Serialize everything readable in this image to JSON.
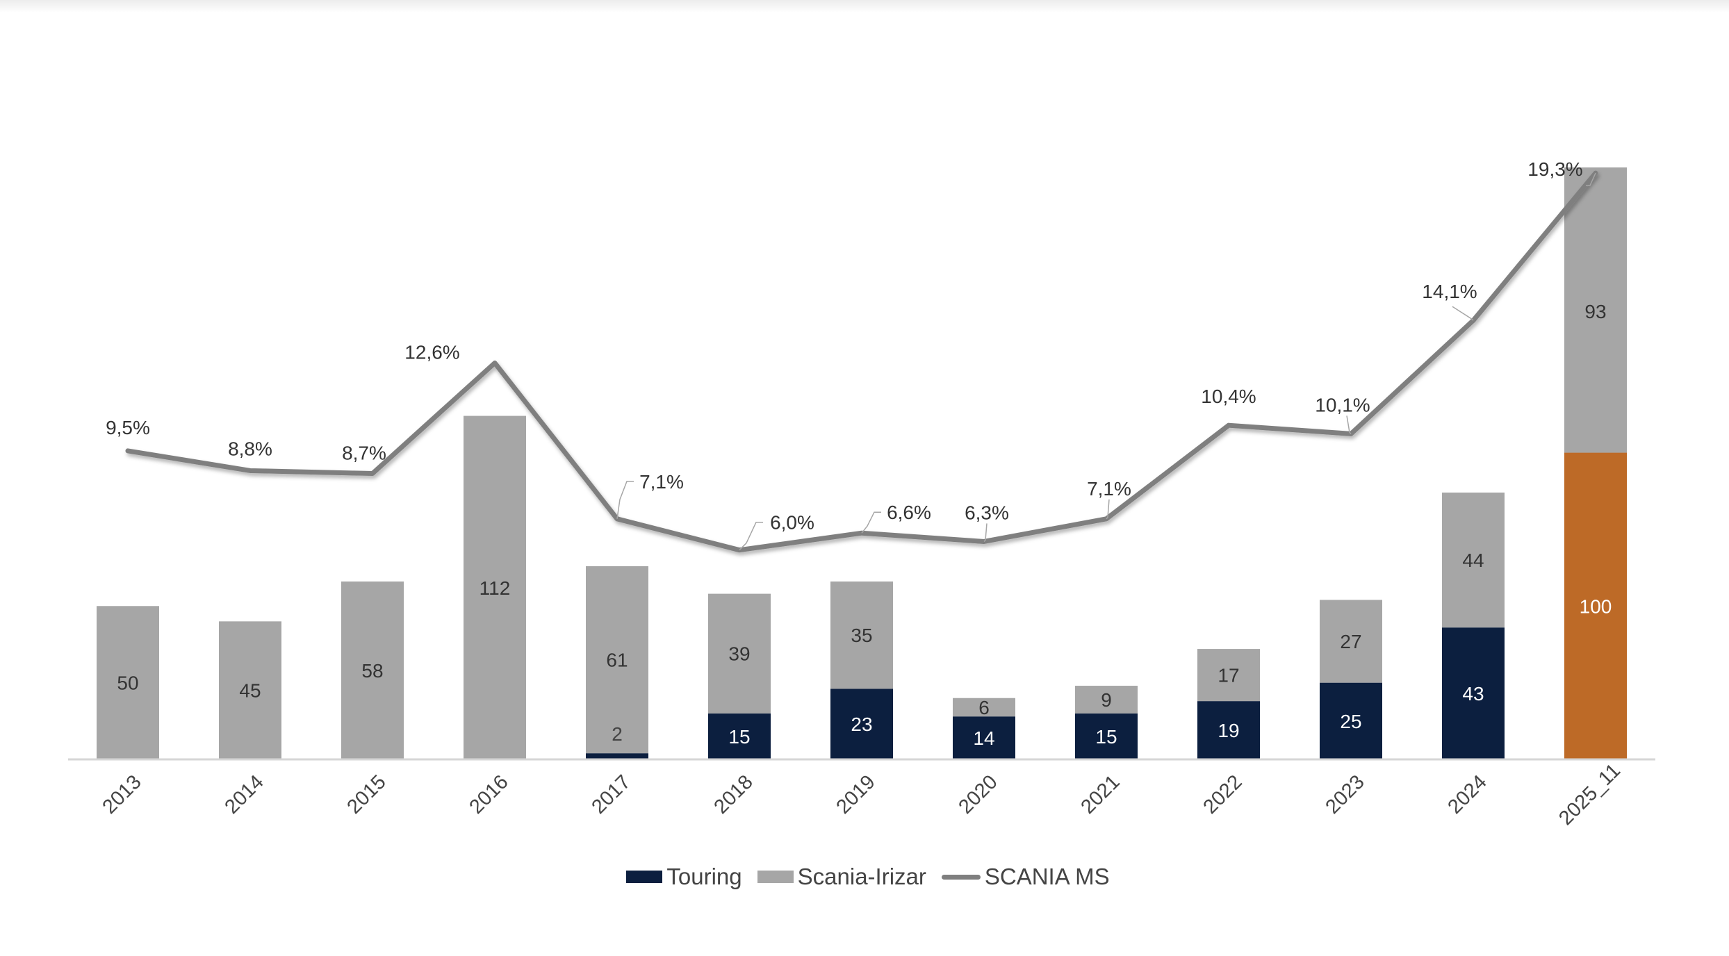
{
  "chart_data": {
    "type": "bar",
    "stacked": true,
    "title": "",
    "xlabel": "",
    "ylabel": "",
    "categories": [
      "2013",
      "2014",
      "2015",
      "2016",
      "2017",
      "2018",
      "2019",
      "2020",
      "2021",
      "2022",
      "2023",
      "2024",
      "2025_11"
    ],
    "series": [
      {
        "name": "Touring",
        "type": "bar",
        "color": "#0c1f3f",
        "label_color": "#ffffff",
        "values": [
          null,
          null,
          null,
          null,
          2,
          15,
          23,
          14,
          15,
          19,
          25,
          43,
          100
        ],
        "labels": [
          "",
          "",
          "",
          "",
          "",
          "15",
          "23",
          "14",
          "15",
          "19",
          "25",
          "43",
          "100"
        ]
      },
      {
        "name": "Scania-Irizar",
        "type": "bar",
        "color": "#a6a6a6",
        "label_color": "#333333",
        "values": [
          50,
          45,
          58,
          112,
          61,
          39,
          35,
          6,
          9,
          17,
          27,
          44,
          93
        ],
        "labels": [
          "50",
          "45",
          "58",
          "112",
          "61",
          "39",
          "35",
          "6",
          "9",
          "17",
          "27",
          "44",
          "93"
        ]
      },
      {
        "name": "SCANIA MS",
        "type": "line",
        "color": "#7f7f7f",
        "axis": "secondary",
        "values": [
          9.5,
          8.8,
          8.7,
          12.6,
          7.1,
          6.0,
          6.6,
          6.3,
          7.1,
          10.4,
          10.1,
          14.1,
          19.3
        ],
        "labels": [
          "9,5%",
          "8,8%",
          "8,7%",
          "12,6%",
          "7,1%",
          "6,0%",
          "6,6%",
          "6,3%",
          "7,1%",
          "10,4%",
          "10,1%",
          "14,1%",
          "19,3%"
        ]
      }
    ],
    "extra_labels": [
      {
        "category": "2017",
        "text": "2"
      }
    ],
    "highlight": {
      "category": "2025_11",
      "series": "Touring",
      "color": "#bd6a27"
    },
    "legend": {
      "position": "bottom",
      "entries": [
        "Touring",
        "Scania-Irizar",
        "SCANIA MS"
      ]
    },
    "grid": false
  }
}
